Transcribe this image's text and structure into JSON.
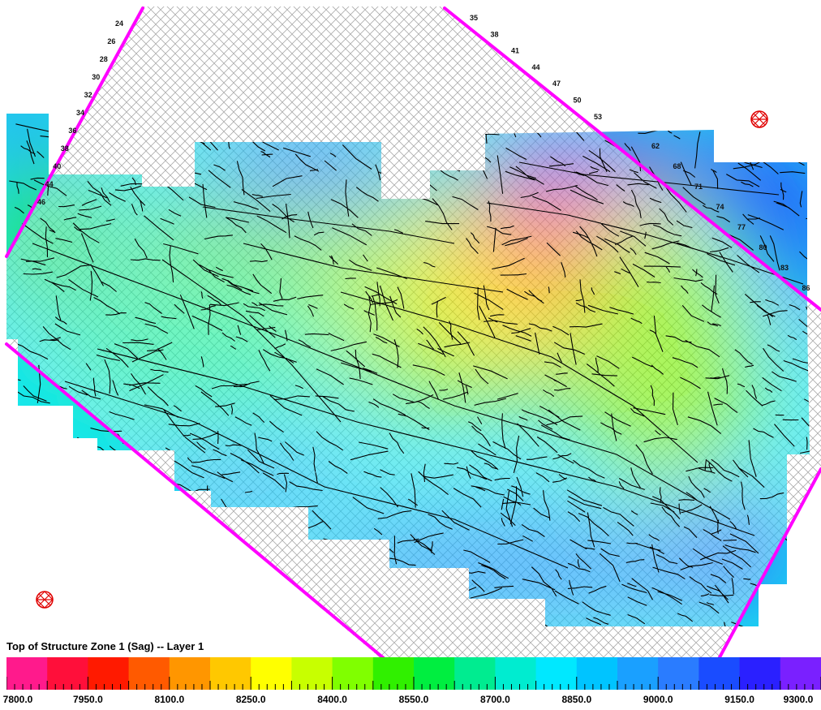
{
  "map": {
    "title": "Top of Structure Zone 1 (Sag) -- Layer 1",
    "colorbar": {
      "min": 7800.0,
      "max": 9300.0,
      "labels": [
        "7800.0",
        "7950.0",
        "8100.0",
        "8250.0",
        "8400.0",
        "8550.0",
        "8700.0",
        "8850.0",
        "9000.0",
        "9150.0",
        "9300.0"
      ],
      "colors": [
        "#ff1a8c",
        "#ff0f3a",
        "#ff1a00",
        "#ff5a00",
        "#ff9600",
        "#ffc800",
        "#ffff00",
        "#c8ff00",
        "#80ff00",
        "#30f000",
        "#00ee40",
        "#00ec90",
        "#00ecd0",
        "#00e8ff",
        "#00c4ff",
        "#1aa0ff",
        "#2a7cff",
        "#1a4cff",
        "#2a20ff",
        "#7a20ff"
      ]
    },
    "inline_labels_left": [
      "24",
      "26",
      "28",
      "30",
      "32",
      "34",
      "36",
      "38",
      "40",
      "44",
      "46"
    ],
    "inline_labels_top": [
      "35",
      "38",
      "41",
      "44",
      "47",
      "50",
      "53"
    ],
    "crossline_labels_right": [
      "62",
      "68",
      "71",
      "74",
      "77",
      "80",
      "83",
      "86"
    ],
    "well_symbols": [
      "well-symbol-northeast",
      "well-symbol-southwest"
    ]
  }
}
